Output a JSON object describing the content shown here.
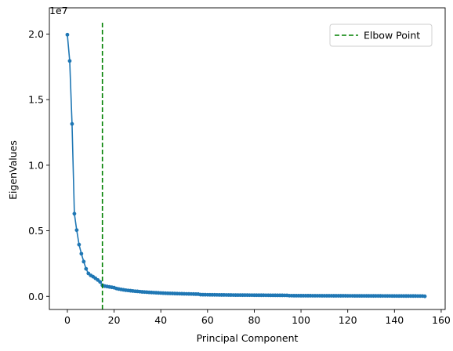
{
  "chart_data": {
    "type": "line",
    "xlabel": "Principal Component",
    "ylabel": "EigenValues",
    "offset_label": "1e7",
    "xlim": [
      -7.7,
      161.7
    ],
    "ylim": [
      -1000000,
      22000000
    ],
    "x_ticks": [
      0,
      20,
      40,
      60,
      80,
      100,
      120,
      140,
      160
    ],
    "x_tick_labels": [
      "0",
      "20",
      "40",
      "60",
      "80",
      "100",
      "120",
      "140",
      "160"
    ],
    "y_ticks": [
      0,
      5000000,
      10000000,
      15000000,
      20000000
    ],
    "y_tick_labels": [
      "0.0",
      "0.5",
      "1.0",
      "1.5",
      "2.0"
    ],
    "grid": false,
    "legend_position": "top-right",
    "series": [
      {
        "color": "#1f77b4",
        "marker": "circle",
        "x": [
          0,
          1,
          2,
          3,
          4,
          5,
          6,
          7,
          8,
          9,
          10,
          11,
          12,
          13,
          14,
          15,
          16,
          17,
          18,
          19,
          20,
          21,
          22,
          23,
          24,
          25,
          26,
          27,
          28,
          29,
          30,
          31,
          32,
          33,
          34,
          35,
          36,
          37,
          38,
          39,
          40,
          41,
          42,
          43,
          44,
          45,
          46,
          47,
          48,
          49,
          50,
          51,
          52,
          53,
          54,
          55,
          56,
          57,
          58,
          59,
          60,
          61,
          62,
          63,
          64,
          65,
          66,
          67,
          68,
          69,
          70,
          71,
          72,
          73,
          74,
          75,
          76,
          77,
          78,
          79,
          80,
          81,
          82,
          83,
          84,
          85,
          86,
          87,
          88,
          89,
          90,
          91,
          92,
          93,
          94,
          95,
          96,
          97,
          98,
          99,
          100,
          101,
          102,
          103,
          104,
          105,
          106,
          107,
          108,
          109,
          110,
          111,
          112,
          113,
          114,
          115,
          116,
          117,
          118,
          119,
          120,
          121,
          122,
          123,
          124,
          125,
          126,
          127,
          128,
          129,
          130,
          131,
          132,
          133,
          134,
          135,
          136,
          137,
          138,
          139,
          140,
          141,
          142,
          143,
          144,
          145,
          146,
          147,
          148,
          149,
          150,
          151,
          152,
          153
        ],
        "values": [
          19950000,
          17950000,
          13150000,
          6300000,
          5050000,
          3950000,
          3250000,
          2650000,
          2100000,
          1750000,
          1600000,
          1500000,
          1380000,
          1250000,
          1100000,
          850000,
          780000,
          750000,
          720000,
          690000,
          660000,
          600000,
          560000,
          530000,
          500000,
          470000,
          450000,
          430000,
          410000,
          390000,
          380000,
          360000,
          340000,
          330000,
          320000,
          305000,
          295000,
          285000,
          275000,
          265000,
          255000,
          245000,
          238000,
          232000,
          226000,
          220000,
          214000,
          209000,
          204000,
          199000,
          194000,
          189000,
          185000,
          181000,
          177000,
          173000,
          170000,
          130000,
          127000,
          124000,
          122000,
          120000,
          118000,
          116000,
          114000,
          112000,
          110000,
          108000,
          106000,
          104000,
          102000,
          100000,
          98000,
          97000,
          96000,
          95000,
          94000,
          93000,
          92000,
          91000,
          90000,
          89000,
          88000,
          87000,
          86000,
          85000,
          84000,
          83000,
          82000,
          81000,
          80000,
          79000,
          78000,
          77000,
          76000,
          55000,
          54000,
          53000,
          52000,
          51000,
          50000,
          49500,
          49000,
          48500,
          48000,
          47500,
          47000,
          46500,
          46000,
          45500,
          45000,
          44500,
          44000,
          43500,
          43000,
          42500,
          42000,
          41500,
          41000,
          40500,
          40000,
          39500,
          39000,
          38500,
          38000,
          37500,
          37000,
          36500,
          36000,
          35500,
          35000,
          34500,
          34000,
          33500,
          33000,
          32500,
          32000,
          31500,
          31000,
          30500,
          30000,
          29500,
          29000,
          28500,
          28000,
          27500,
          27000,
          26500,
          26000,
          25500,
          25000,
          24500,
          24000,
          5000
        ]
      }
    ],
    "vline": {
      "x": 15,
      "ymin": -1000000,
      "ymax": 21000000,
      "color": "#008000",
      "style": "dashed",
      "label": "Elbow Point"
    }
  }
}
